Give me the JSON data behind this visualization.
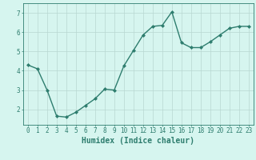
{
  "xlabel": "Humidex (Indice chaleur)",
  "x": [
    0,
    1,
    2,
    3,
    4,
    5,
    6,
    7,
    8,
    9,
    10,
    11,
    12,
    13,
    14,
    15,
    16,
    17,
    18,
    19,
    20,
    21,
    22,
    23
  ],
  "y": [
    4.3,
    4.1,
    3.0,
    1.65,
    1.6,
    1.85,
    2.2,
    2.55,
    3.05,
    3.0,
    4.25,
    5.05,
    5.85,
    6.3,
    6.35,
    7.05,
    5.45,
    5.2,
    5.2,
    5.5,
    5.85,
    6.2,
    6.3,
    6.3
  ],
  "line_color": "#2e7d6e",
  "marker": "D",
  "marker_size": 2.0,
  "bg_color": "#d6f5ef",
  "grid_color": "#b8d8d2",
  "axis_color": "#2e7d6e",
  "ylim": [
    1.2,
    7.5
  ],
  "xlim": [
    -0.5,
    23.5
  ],
  "yticks": [
    2,
    3,
    4,
    5,
    6,
    7
  ],
  "xticks": [
    0,
    1,
    2,
    3,
    4,
    5,
    6,
    7,
    8,
    9,
    10,
    11,
    12,
    13,
    14,
    15,
    16,
    17,
    18,
    19,
    20,
    21,
    22,
    23
  ],
  "tick_fontsize": 5.5,
  "xlabel_fontsize": 7.0,
  "linewidth": 1.0
}
